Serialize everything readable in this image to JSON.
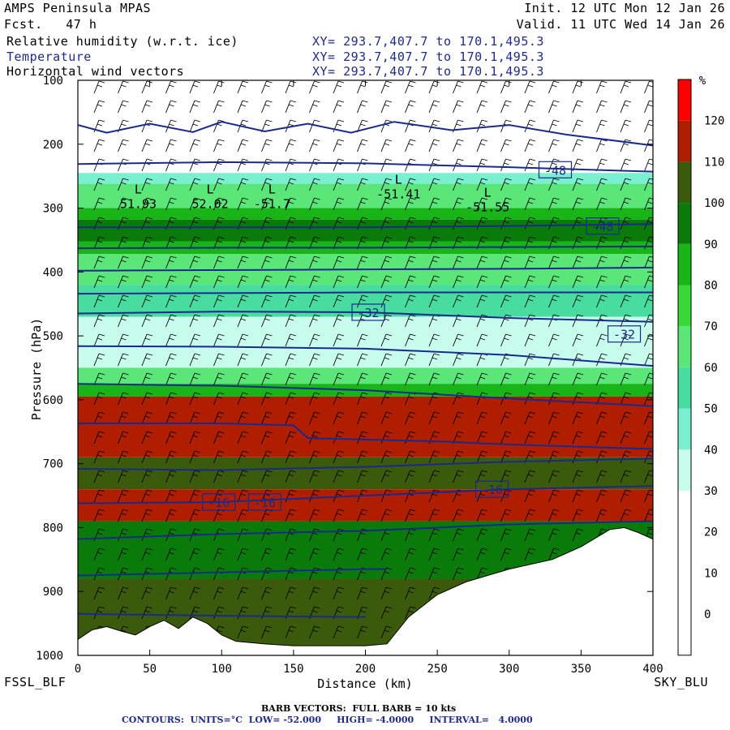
{
  "header": {
    "title": "AMPS Peninsula MPAS",
    "forecast": "Fcst.   47 h",
    "init": "Init. 12 UTC Mon 12 Jan 26",
    "valid": "Valid. 11 UTC Wed 14 Jan 26",
    "fields": [
      {
        "name": "Relative humidity (w.r.t. ice)",
        "xy": "XY= 293.7,407.7 to 170.1,495.3"
      },
      {
        "name": "Temperature",
        "xy": "XY= 293.7,407.7 to 170.1,495.3"
      },
      {
        "name": "Horizontal wind vectors",
        "xy": "XY= 293.7,407.7 to 170.1,495.3"
      }
    ]
  },
  "footer": {
    "left_station": "FSSL_BLF",
    "right_station": "SKY_BLU",
    "barb_note": "BARB VECTORS:  FULL BARB = 10 kts",
    "contours_note": "CONTOURS:  UNITS=°C  LOW= -52.000     HIGH= -4.0000     INTERVAL=   4.0000"
  },
  "colors": {
    "contour": "#1a2a8c",
    "terrain": "#ffffff",
    "rh_scale": [
      "#ffffff",
      "#ffffff",
      "#ffffff",
      "#ffffff",
      "#c8fcec",
      "#7af0d0",
      "#48dca0",
      "#5ae678",
      "#38d838",
      "#18b418",
      "#0a7a0a",
      "#3c5a0c",
      "#b01e00",
      "#ff0000"
    ]
  },
  "chart_data": {
    "type": "heatmap",
    "xlabel": "Distance (km)",
    "ylabel": "Pressure (hPa)",
    "xlim": [
      0,
      400
    ],
    "ylim": [
      1000,
      100
    ],
    "xticks": [
      "0",
      "50",
      "100",
      "150",
      "200",
      "250",
      "300",
      "350",
      "400"
    ],
    "yticks": [
      "100",
      "200",
      "300",
      "400",
      "500",
      "600",
      "700",
      "800",
      "900",
      "1000"
    ],
    "colorbar": {
      "unit": "%",
      "levels": [
        "0",
        "10",
        "20",
        "30",
        "40",
        "50",
        "60",
        "70",
        "80",
        "90",
        "100",
        "110",
        "120"
      ]
    },
    "rh_layers": [
      {
        "p_top": 245,
        "p_bot": 262,
        "rh": 45
      },
      {
        "p_top": 262,
        "p_bot": 300,
        "rh": 65
      },
      {
        "p_top": 300,
        "p_bot": 318,
        "rh": 85
      },
      {
        "p_top": 318,
        "p_bot": 352,
        "rh": 95
      },
      {
        "p_top": 352,
        "p_bot": 372,
        "rh": 85
      },
      {
        "p_top": 372,
        "p_bot": 420,
        "rh": 65
      },
      {
        "p_top": 420,
        "p_bot": 470,
        "rh": 55
      },
      {
        "p_top": 470,
        "p_bot": 550,
        "rh": 35
      },
      {
        "p_top": 550,
        "p_bot": 575,
        "rh": 65
      },
      {
        "p_top": 575,
        "p_bot": 595,
        "rh": 85
      },
      {
        "p_top": 595,
        "p_bot": 690,
        "rh": 112
      },
      {
        "p_top": 690,
        "p_bot": 740,
        "rh": 105
      },
      {
        "p_top": 740,
        "p_bot": 790,
        "rh": 112
      },
      {
        "p_top": 790,
        "p_bot": 880,
        "rh": 95
      },
      {
        "p_top": 880,
        "p_bot": 1000,
        "rh": 105
      }
    ],
    "terrain": {
      "x": [
        0,
        10,
        20,
        30,
        40,
        50,
        60,
        70,
        80,
        90,
        100,
        110,
        130,
        150,
        170,
        200,
        215,
        230,
        250,
        270,
        300,
        330,
        350,
        370,
        380,
        390,
        400
      ],
      "p": [
        975,
        960,
        955,
        962,
        968,
        955,
        945,
        958,
        940,
        950,
        968,
        978,
        982,
        985,
        985,
        985,
        982,
        940,
        905,
        885,
        865,
        850,
        830,
        803,
        800,
        808,
        818
      ]
    },
    "isotherms": [
      {
        "x": [
          0,
          20,
          50,
          80,
          100,
          130,
          160,
          190,
          220,
          260,
          300,
          340,
          400
        ],
        "p": [
          170,
          182,
          168,
          181,
          165,
          180,
          168,
          182,
          165,
          178,
          170,
          185,
          202
        ]
      },
      {
        "x": [
          0,
          100,
          200,
          300,
          400
        ],
        "p": [
          231,
          228,
          230,
          236,
          243
        ]
      },
      {
        "x": [
          0,
          100,
          200,
          300,
          400
        ],
        "p": [
          330,
          330,
          330,
          328,
          325
        ]
      },
      {
        "x": [
          0,
          100,
          200,
          300,
          400
        ],
        "p": [
          363,
          362,
          362,
          361,
          360
        ]
      },
      {
        "x": [
          0,
          100,
          200,
          300,
          400
        ],
        "p": [
          398,
          397,
          396,
          395,
          393
        ]
      },
      {
        "x": [
          0,
          100,
          200,
          300,
          400
        ],
        "p": [
          434,
          433,
          432,
          432,
          432
        ]
      },
      {
        "x": [
          0,
          100,
          200,
          300,
          400
        ],
        "p": [
          465,
          462,
          463,
          472,
          478
        ]
      },
      {
        "x": [
          0,
          100,
          200,
          300,
          400
        ],
        "p": [
          516,
          517,
          520,
          530,
          547
        ]
      },
      {
        "x": [
          0,
          100,
          200,
          300,
          400
        ],
        "p": [
          575,
          578,
          585,
          598,
          610
        ]
      },
      {
        "x": [
          0,
          100,
          150,
          160,
          250,
          300,
          400
        ],
        "p": [
          637,
          637,
          640,
          660,
          665,
          670,
          677
        ]
      },
      {
        "x": [
          0,
          100,
          200,
          300,
          400
        ],
        "p": [
          708,
          710,
          705,
          697,
          692
        ]
      },
      {
        "x": [
          0,
          100,
          200,
          300,
          400
        ],
        "p": [
          762,
          760,
          750,
          740,
          735
        ]
      },
      {
        "x": [
          0,
          100,
          200,
          300,
          400
        ],
        "p": [
          818,
          810,
          805,
          795,
          790
        ]
      },
      {
        "x": [
          0,
          100,
          200,
          215
        ],
        "p": [
          875,
          870,
          865,
          865
        ]
      },
      {
        "x": [
          0,
          100,
          200
        ],
        "p": [
          935,
          938,
          940
        ]
      }
    ],
    "contour_labels": [
      {
        "text": "-48",
        "x": 332,
        "p": 240
      },
      {
        "text": "-48",
        "x": 365,
        "p": 328
      },
      {
        "text": "-32",
        "x": 202,
        "p": 463
      },
      {
        "text": "-32",
        "x": 380,
        "p": 497
      },
      {
        "text": "-16",
        "x": 98,
        "p": 760
      },
      {
        "text": "-16",
        "x": 130,
        "p": 760
      },
      {
        "text": "-16",
        "x": 288,
        "p": 740
      }
    ],
    "extrema": [
      {
        "symbol": "L",
        "value": "51.93",
        "x": 42,
        "p": 300
      },
      {
        "symbol": "L",
        "value": "52.02",
        "x": 92,
        "p": 300
      },
      {
        "symbol": "L",
        "value": "-51.7",
        "x": 135,
        "p": 300
      },
      {
        "symbol": "L",
        "value": "-51.41",
        "x": 223,
        "p": 285
      },
      {
        "symbol": "L",
        "value": "-51.55",
        "x": 285,
        "p": 305
      }
    ]
  }
}
